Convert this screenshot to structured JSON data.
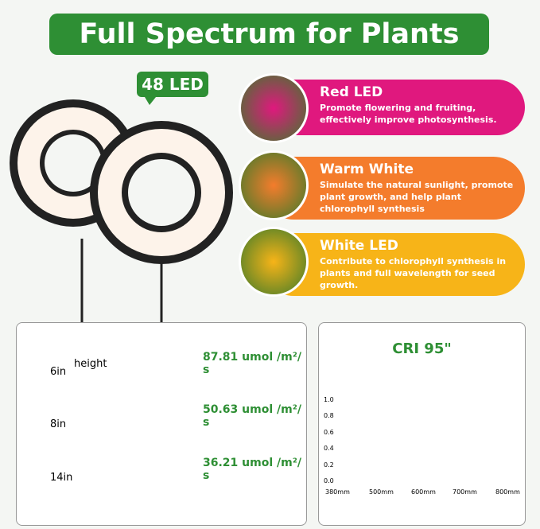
{
  "header": {
    "title": "Full Spectrum for Plants",
    "badge": "48 LED"
  },
  "features": [
    {
      "title": "Red LED",
      "text": "Promote flowering and fruiting, effectively improve photosynthesis.",
      "color": "#e0187e"
    },
    {
      "title": "Warm White",
      "text": "Simulate the natural sunlight, promote plant growth, and help plant chlorophyll synthesis",
      "color": "#f47c2c"
    },
    {
      "title": "White LED",
      "text": "Contribute to chlorophyll synthesis in plants and full wavelength for seed growth.",
      "color": "#f7b418"
    }
  ],
  "intensity": {
    "height_label": "height",
    "rows": [
      {
        "distance": "6in",
        "value": "87.81 umol /m²/ s"
      },
      {
        "distance": "8in",
        "value": "50.63 umol /m²/ s"
      },
      {
        "distance": "14in",
        "value": "36.21 umol /m²/ s"
      }
    ]
  },
  "spectrum": {
    "title": "CRI 95\"",
    "y_labels": [
      "0.0",
      "0.2",
      "0.4",
      "0.6",
      "0.8",
      "1.0"
    ],
    "x_labels": [
      "380mm",
      "500mm",
      "600mm",
      "700mm",
      "800mm"
    ]
  }
}
